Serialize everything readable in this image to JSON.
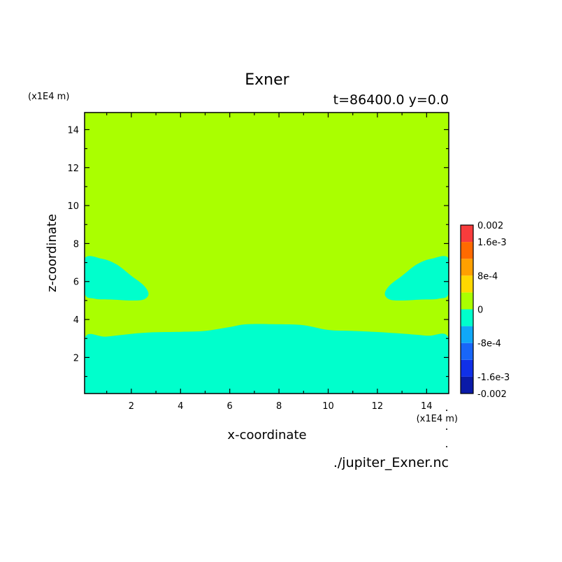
{
  "chart_data": {
    "type": "heatmap",
    "title": "Exner",
    "subtitle": "t=86400.0 y=0.0",
    "xlabel": "x-coordinate",
    "ylabel": "z-coordinate",
    "x_unit": "(x1E4 m)",
    "y_unit": "(x1E4 m)",
    "source_file": "./jupiter_Exner.nc",
    "xlim": [
      0.1,
      14.9
    ],
    "ylim": [
      0.1,
      14.9
    ],
    "x_ticks": [
      "2",
      "4",
      "6",
      "8",
      "10",
      "12",
      "14"
    ],
    "y_ticks": [
      "2",
      "4",
      "6",
      "8",
      "10",
      "12",
      "14"
    ],
    "colorbar": {
      "range": [
        -0.002,
        0.002
      ],
      "levels": [
        -0.002,
        -0.0016,
        -0.0012,
        -0.0008,
        -0.0004,
        0,
        0.0004,
        0.0008,
        0.0012,
        0.0016,
        0.002
      ],
      "colors": [
        "#0a1aa8",
        "#1030e8",
        "#1866f8",
        "#10a8f8",
        "#00ffcc",
        "#aaff00",
        "#ffd800",
        "#ffa000",
        "#ff6a00",
        "#f83c3c"
      ],
      "labels": [
        "0.002",
        "1.6e-3",
        "8e-4",
        "0",
        "-8e-4",
        "-1.6e-3",
        "-0.002"
      ]
    },
    "background_value_range": [
      0,
      0.0004
    ],
    "regions": [
      {
        "name": "lower negative layer",
        "value_range": [
          -0.0004,
          0
        ],
        "boundary": [
          [
            0.1,
            0.1
          ],
          [
            0.1,
            3.0
          ],
          [
            1.0,
            3.1
          ],
          [
            2.5,
            3.3
          ],
          [
            4,
            3.35
          ],
          [
            5,
            3.4
          ],
          [
            6,
            3.6
          ],
          [
            6.7,
            3.75
          ],
          [
            8,
            3.75
          ],
          [
            9,
            3.7
          ],
          [
            10,
            3.45
          ],
          [
            11,
            3.4
          ],
          [
            12.5,
            3.3
          ],
          [
            14,
            3.15
          ],
          [
            14.9,
            3.0
          ],
          [
            14.9,
            0.1
          ]
        ]
      },
      {
        "name": "left negative cell",
        "value_range": [
          -0.0004,
          0
        ],
        "boundary": [
          [
            0.1,
            7.2
          ],
          [
            0.8,
            7.2
          ],
          [
            1.4,
            6.9
          ],
          [
            2.0,
            6.3
          ],
          [
            2.5,
            5.8
          ],
          [
            2.7,
            5.35
          ],
          [
            2.5,
            5.05
          ],
          [
            2.0,
            5.0
          ],
          [
            1.2,
            5.05
          ],
          [
            0.5,
            5.1
          ],
          [
            0.1,
            5.4
          ]
        ]
      },
      {
        "name": "right negative cell",
        "value_range": [
          -0.0004,
          0
        ],
        "boundary": [
          [
            14.9,
            7.2
          ],
          [
            14.2,
            7.2
          ],
          [
            13.6,
            6.9
          ],
          [
            13.0,
            6.3
          ],
          [
            12.5,
            5.8
          ],
          [
            12.3,
            5.35
          ],
          [
            12.5,
            5.05
          ],
          [
            13.0,
            5.0
          ],
          [
            13.8,
            5.05
          ],
          [
            14.5,
            5.1
          ],
          [
            14.9,
            5.4
          ]
        ]
      }
    ]
  }
}
